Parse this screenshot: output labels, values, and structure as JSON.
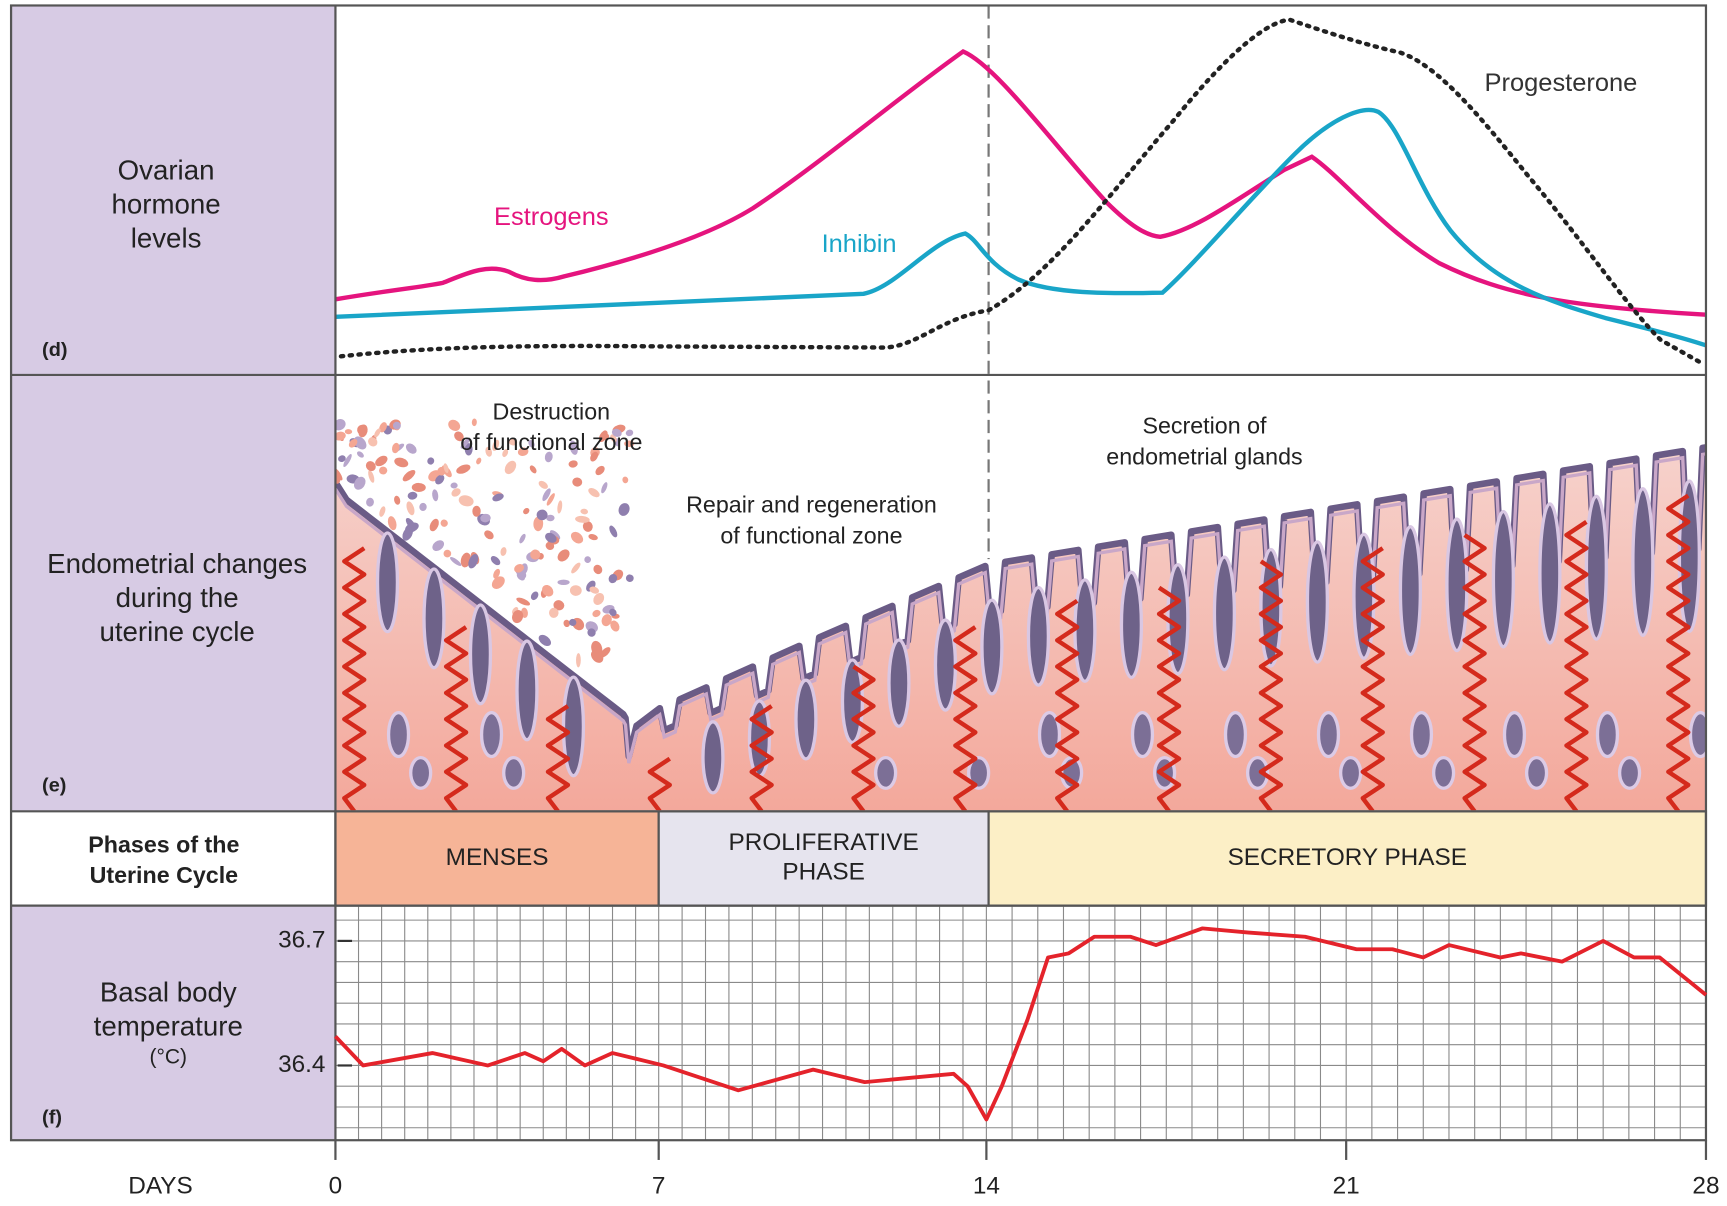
{
  "panel_d": {
    "letter": "(d)",
    "label_lines": [
      "Ovarian",
      "hormone",
      "levels"
    ],
    "curves": [
      {
        "name": "Estrogens",
        "color": "#e5147e"
      },
      {
        "name": "Inhibin",
        "color": "#19a5c8"
      },
      {
        "name": "Progesterone",
        "color": "#222222"
      }
    ]
  },
  "panel_e": {
    "letter": "(e)",
    "label_lines": [
      "Endometrial changes",
      "during the",
      "uterine cycle"
    ],
    "annotations": [
      [
        "Destruction",
        "of functional zone"
      ],
      [
        "Repair and regeneration",
        "of functional zone"
      ],
      [
        "Secretion of",
        "endometrial glands"
      ]
    ]
  },
  "phases": {
    "label_lines": [
      "Phases of the",
      "Uterine Cycle"
    ],
    "items": [
      {
        "lines": [
          "MENSES"
        ],
        "color": "#f6b497"
      },
      {
        "lines": [
          "PROLIFERATIVE",
          "PHASE"
        ],
        "color": "#e6e4ee"
      },
      {
        "lines": [
          "SECRETORY PHASE"
        ],
        "color": "#fcefc6"
      }
    ]
  },
  "chart_data": {
    "type": "line",
    "letter": "(f)",
    "label_lines": [
      "Basal body",
      "temperature",
      "(°C)"
    ],
    "xlabel": "DAYS",
    "x": [
      0,
      0.6,
      2.1,
      3.3,
      4.1,
      4.5,
      4.9,
      5.4,
      6.0,
      7.1,
      8.7,
      10.3,
      11.4,
      13.3,
      13.6,
      14.0,
      14.3,
      14.8,
      15.2,
      15.6,
      16.1,
      16.8,
      17.3,
      18.2,
      19.1,
      20.2,
      21.2,
      21.9,
      22.5,
      23.0,
      24.0,
      24.4,
      25.2,
      26.0,
      26.6,
      27.1,
      28.0
    ],
    "series": [
      {
        "color": "#e4232b",
        "values": [
          36.47,
          36.4,
          36.43,
          36.4,
          36.43,
          36.41,
          36.44,
          36.4,
          36.43,
          36.4,
          36.34,
          36.39,
          36.36,
          36.38,
          36.35,
          36.27,
          36.35,
          36.51,
          36.66,
          36.67,
          36.71,
          36.71,
          36.69,
          36.73,
          36.72,
          36.71,
          36.68,
          36.68,
          36.66,
          36.69,
          36.66,
          36.67,
          36.65,
          36.7,
          36.66,
          36.66,
          36.57
        ]
      }
    ],
    "xlim": [
      0,
      28
    ],
    "xticks": [
      0,
      7,
      14,
      21,
      28
    ],
    "ylim": [
      36.22,
      36.785
    ],
    "yticks": [
      36.4,
      36.7
    ],
    "grid": true,
    "grid_step_x": 0.5,
    "grid_step_y": 0.05
  }
}
